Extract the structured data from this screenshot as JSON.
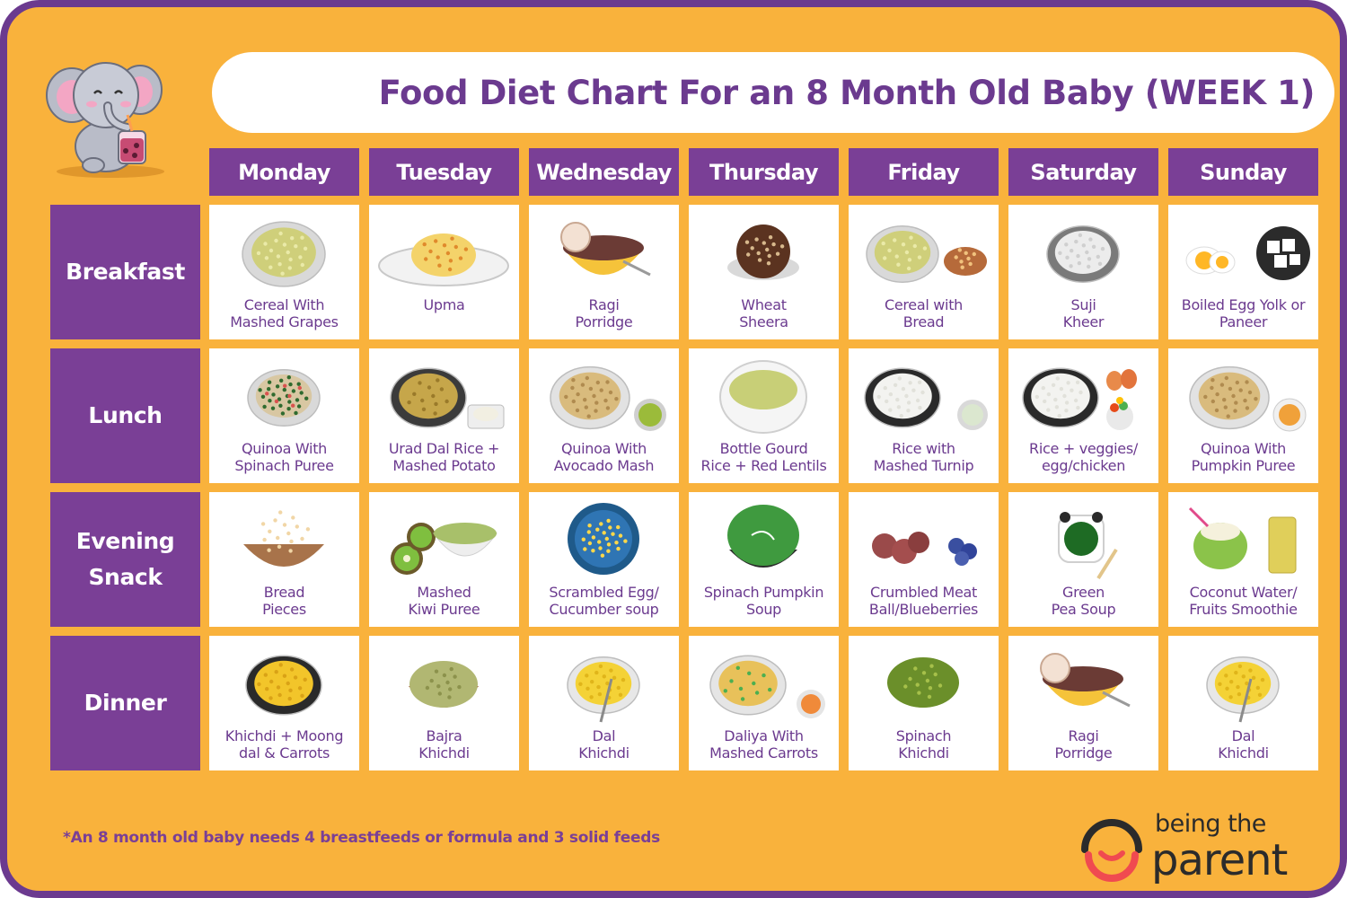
{
  "title": "Food Diet Chart For an 8 Month Old Baby (WEEK 1)",
  "days": [
    "Monday",
    "Tuesday",
    "Wednesday",
    "Thursday",
    "Friday",
    "Saturday",
    "Sunday"
  ],
  "meals": [
    {
      "name": "Breakfast",
      "items": [
        {
          "label": "Cereal With\nMashed Grapes",
          "icon": "cereal-bowl-icon"
        },
        {
          "label": "Upma",
          "icon": "upma-plate-icon"
        },
        {
          "label": "Ragi\nPorridge",
          "icon": "ragi-porridge-icon"
        },
        {
          "label": "Wheat\nSheera",
          "icon": "wheat-sheera-icon"
        },
        {
          "label": "Cereal with\nBread",
          "icon": "cereal-bread-icon"
        },
        {
          "label": "Suji\nKheer",
          "icon": "suji-kheer-icon"
        },
        {
          "label": "Boiled Egg Yolk or\nPaneer",
          "icon": "egg-paneer-icon"
        }
      ]
    },
    {
      "name": "Lunch",
      "items": [
        {
          "label": "Quinoa With\nSpinach Puree",
          "icon": "quinoa-spinach-icon"
        },
        {
          "label": "Urad Dal Rice +\nMashed Potato",
          "icon": "urad-dal-rice-icon"
        },
        {
          "label": "Quinoa With\nAvocado Mash",
          "icon": "quinoa-avocado-icon"
        },
        {
          "label": "Bottle Gourd\nRice + Red Lentils",
          "icon": "bottle-gourd-rice-icon"
        },
        {
          "label": "Rice with\nMashed Turnip",
          "icon": "rice-turnip-icon"
        },
        {
          "label": "Rice + veggies/\negg/chicken",
          "icon": "rice-veggies-icon"
        },
        {
          "label": "Quinoa With\nPumpkin Puree",
          "icon": "quinoa-pumpkin-icon"
        }
      ]
    },
    {
      "name": "Evening\nSnack",
      "items": [
        {
          "label": "Bread\nPieces",
          "icon": "bread-pieces-icon"
        },
        {
          "label": "Mashed\nKiwi Puree",
          "icon": "kiwi-puree-icon"
        },
        {
          "label": "Scrambled Egg/\nCucumber soup",
          "icon": "scrambled-egg-icon"
        },
        {
          "label": "Spinach Pumpkin\nSoup",
          "icon": "spinach-soup-icon"
        },
        {
          "label": "Crumbled Meat\nBall/Blueberries",
          "icon": "meatball-blueberry-icon"
        },
        {
          "label": "Green\nPea Soup",
          "icon": "green-pea-soup-icon"
        },
        {
          "label": "Coconut Water/\nFruits Smoothie",
          "icon": "coconut-smoothie-icon"
        }
      ]
    },
    {
      "name": "Dinner",
      "items": [
        {
          "label": "Khichdi + Moong\ndal & Carrots",
          "icon": "khichdi-moong-icon"
        },
        {
          "label": "Bajra\nKhichdi",
          "icon": "bajra-khichdi-icon"
        },
        {
          "label": "Dal\nKhichdi",
          "icon": "dal-khichdi-icon"
        },
        {
          "label": "Daliya With\nMashed Carrots",
          "icon": "daliya-carrot-icon"
        },
        {
          "label": "Spinach\nKhichdi",
          "icon": "spinach-khichdi-icon"
        },
        {
          "label": "Ragi\nPorridge",
          "icon": "ragi-porridge-icon"
        },
        {
          "label": "Dal\nKhichdi",
          "icon": "dal-khichdi-icon"
        }
      ]
    }
  ],
  "footnote": "*An 8 month old baby needs 4 breastfeeds or formula and 3 solid feeds",
  "brand": {
    "line1": "being the",
    "line2": "parent"
  },
  "colors": {
    "background": "#f9b23c",
    "purple": "#7a3f96",
    "title": "#6b3a8f",
    "white": "#ffffff",
    "brand_red": "#f04a50"
  },
  "mascot_icon": "elephant-mascot-icon"
}
